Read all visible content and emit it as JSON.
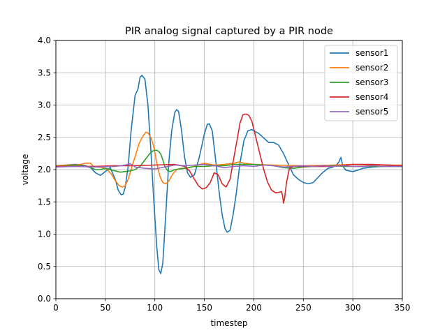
{
  "chart_data": {
    "type": "line",
    "title": "PIR analog signal captured by a PIR node",
    "xlabel": "timestep",
    "ylabel": "voltage",
    "xlim": [
      0,
      350
    ],
    "ylim": [
      0.0,
      4.0
    ],
    "xticks": [
      0,
      50,
      100,
      150,
      200,
      250,
      300,
      350
    ],
    "yticks": [
      0.0,
      0.5,
      1.0,
      1.5,
      2.0,
      2.5,
      3.0,
      3.5,
      4.0
    ],
    "ytick_labels": [
      "0.0",
      "0.5",
      "1.0",
      "1.5",
      "2.0",
      "2.5",
      "3.0",
      "3.5",
      "4.0"
    ],
    "grid": true,
    "legend_position": "top-right",
    "series": [
      {
        "name": "sensor1",
        "color": "#1f77b4",
        "x": [
          0,
          10,
          20,
          30,
          35,
          40,
          45,
          50,
          55,
          60,
          63,
          66,
          68,
          70,
          73,
          76,
          80,
          83,
          85,
          87,
          90,
          93,
          96,
          99,
          102,
          104,
          106,
          108,
          111,
          114,
          117,
          120,
          122,
          124,
          127,
          130,
          133,
          136,
          140,
          145,
          150,
          153,
          155,
          158,
          161,
          165,
          168,
          171,
          173,
          176,
          179,
          182,
          186,
          190,
          194,
          198,
          200,
          205,
          210,
          215,
          220,
          225,
          230,
          235,
          240,
          245,
          250,
          255,
          260,
          265,
          270,
          275,
          280,
          284,
          286,
          288,
          290,
          293,
          296,
          300,
          305,
          310,
          320,
          330,
          340,
          350
        ],
        "y": [
          2.06,
          2.07,
          2.08,
          2.06,
          2.03,
          1.95,
          1.91,
          1.97,
          2.03,
          1.85,
          1.68,
          1.61,
          1.62,
          1.72,
          2.05,
          2.6,
          3.15,
          3.25,
          3.43,
          3.46,
          3.4,
          3.0,
          2.3,
          1.5,
          0.8,
          0.45,
          0.39,
          0.55,
          1.3,
          2.1,
          2.6,
          2.88,
          2.93,
          2.9,
          2.6,
          2.2,
          1.95,
          1.88,
          1.92,
          2.2,
          2.55,
          2.7,
          2.71,
          2.6,
          2.2,
          1.65,
          1.3,
          1.08,
          1.03,
          1.06,
          1.3,
          1.6,
          2.1,
          2.45,
          2.6,
          2.62,
          2.6,
          2.56,
          2.49,
          2.42,
          2.42,
          2.38,
          2.25,
          2.08,
          1.92,
          1.85,
          1.8,
          1.78,
          1.8,
          1.88,
          1.96,
          2.02,
          2.04,
          2.08,
          2.12,
          2.19,
          2.05,
          1.99,
          1.98,
          1.97,
          1.99,
          2.02,
          2.04,
          2.05,
          2.05,
          2.05
        ]
      },
      {
        "name": "sensor2",
        "color": "#ff7f0e",
        "x": [
          0,
          10,
          20,
          25,
          30,
          35,
          38,
          42,
          48,
          52,
          56,
          60,
          64,
          67,
          70,
          73,
          76,
          80,
          84,
          88,
          91,
          93,
          96,
          99,
          102,
          105,
          108,
          111,
          114,
          118,
          122,
          126,
          130,
          135,
          140,
          145,
          150,
          160,
          170,
          180,
          185,
          190,
          200,
          220,
          250,
          280,
          300,
          320,
          350
        ],
        "y": [
          2.06,
          2.07,
          2.07,
          2.08,
          2.1,
          2.1,
          2.05,
          2.04,
          2.03,
          2.0,
          1.93,
          1.83,
          1.75,
          1.73,
          1.75,
          1.85,
          2.0,
          2.2,
          2.4,
          2.52,
          2.58,
          2.57,
          2.5,
          2.35,
          2.1,
          1.9,
          1.8,
          1.78,
          1.82,
          1.93,
          2.0,
          2.02,
          2.02,
          2.03,
          2.05,
          2.08,
          2.1,
          2.07,
          2.08,
          2.1,
          2.12,
          2.1,
          2.08,
          2.07,
          2.06,
          2.07,
          2.08,
          2.07,
          2.07
        ]
      },
      {
        "name": "sensor3",
        "color": "#2ca02c",
        "x": [
          0,
          15,
          25,
          30,
          35,
          40,
          45,
          50,
          55,
          60,
          65,
          70,
          75,
          80,
          85,
          90,
          95,
          98,
          100,
          102,
          104,
          106,
          108,
          110,
          113,
          116,
          120,
          130,
          140,
          150,
          160,
          170,
          180,
          190,
          200,
          210,
          220,
          230,
          240,
          250,
          260,
          270,
          280,
          290,
          300,
          320,
          340,
          350
        ],
        "y": [
          2.05,
          2.06,
          2.06,
          2.05,
          2.03,
          2.0,
          2.0,
          2.02,
          2.0,
          1.98,
          1.96,
          1.97,
          1.98,
          2.0,
          2.05,
          2.15,
          2.25,
          2.29,
          2.3,
          2.3,
          2.28,
          2.24,
          2.15,
          2.05,
          1.98,
          1.97,
          2.0,
          2.02,
          2.05,
          2.05,
          2.06,
          2.06,
          2.08,
          2.08,
          2.08,
          2.07,
          2.06,
          2.03,
          2.02,
          2.04,
          2.05,
          2.05,
          2.06,
          2.05,
          2.05,
          2.05,
          2.05,
          2.05
        ]
      },
      {
        "name": "sensor4",
        "color": "#d62728",
        "x": [
          0,
          20,
          40,
          60,
          80,
          100,
          120,
          130,
          135,
          140,
          144,
          148,
          152,
          156,
          160,
          164,
          168,
          172,
          176,
          180,
          183,
          186,
          189,
          192,
          195,
          198,
          202,
          206,
          210,
          214,
          218,
          222,
          226,
          228,
          229,
          230,
          231,
          233,
          236,
          240,
          250,
          260,
          280,
          300,
          320,
          350
        ],
        "y": [
          2.05,
          2.05,
          2.05,
          2.06,
          2.06,
          2.07,
          2.08,
          2.05,
          1.98,
          1.85,
          1.75,
          1.7,
          1.72,
          1.8,
          1.95,
          1.92,
          1.78,
          1.73,
          1.85,
          2.2,
          2.45,
          2.72,
          2.85,
          2.86,
          2.84,
          2.75,
          2.5,
          2.25,
          2.0,
          1.8,
          1.68,
          1.64,
          1.65,
          1.66,
          1.6,
          1.48,
          1.55,
          1.8,
          2.02,
          2.05,
          2.05,
          2.05,
          2.05,
          2.08,
          2.08,
          2.06
        ]
      },
      {
        "name": "sensor5",
        "color": "#9467bd",
        "x": [
          0,
          20,
          40,
          60,
          70,
          75,
          80,
          90,
          100,
          110,
          120,
          130,
          140,
          150,
          160,
          170,
          180,
          190,
          200,
          210,
          220,
          230,
          240,
          250,
          260,
          270,
          280,
          290,
          300,
          310,
          320,
          330,
          340,
          350
        ],
        "y": [
          2.04,
          2.05,
          2.04,
          2.05,
          2.07,
          2.09,
          2.04,
          2.02,
          2.01,
          2.04,
          2.07,
          2.06,
          2.07,
          2.08,
          2.06,
          2.03,
          2.05,
          2.06,
          2.05,
          2.07,
          2.06,
          2.04,
          2.05,
          2.06,
          2.05,
          2.06,
          2.05,
          2.06,
          2.05,
          2.05,
          2.06,
          2.05,
          2.05,
          2.05
        ]
      }
    ]
  }
}
